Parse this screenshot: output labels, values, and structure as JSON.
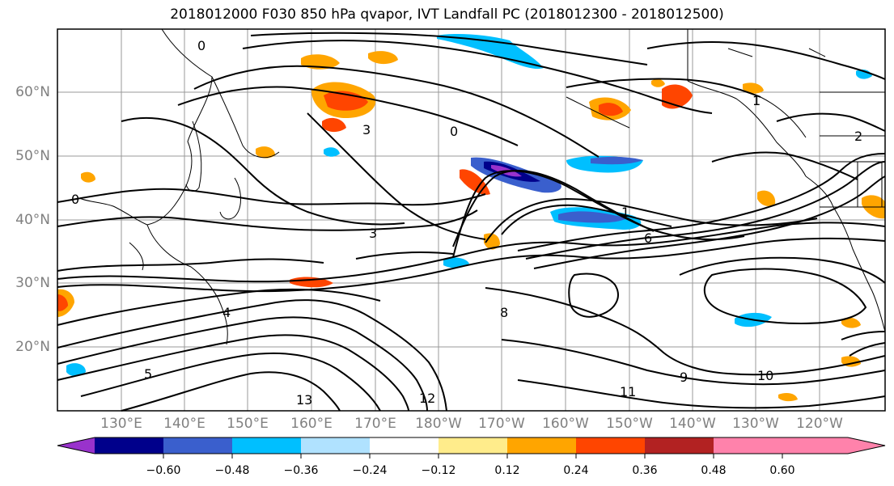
{
  "title": "2018012000 F030 850 hPa qvapor, IVT Landfall PC (2018012300 - 2018012500)",
  "lat_labels": [
    "60°N",
    "50°N",
    "40°N",
    "30°N",
    "20°N"
  ],
  "lon_labels": [
    "130°E",
    "140°E",
    "150°E",
    "160°E",
    "170°E",
    "180°W",
    "170°W",
    "160°W",
    "150°W",
    "140°W",
    "130°W",
    "120°W"
  ],
  "colorbar": {
    "labels": [
      "−0.60",
      "−0.48",
      "−0.36",
      "−0.24",
      "−0.12",
      "0.12",
      "0.24",
      "0.36",
      "0.48",
      "0.60"
    ],
    "colors": [
      "#9932cc",
      "#00008b",
      "#3a5fcd",
      "#00bfff",
      "#b0e2ff",
      "#ffffff",
      "#ffec8b",
      "#ffa500",
      "#ff4500",
      "#b22222",
      "#ff82ab"
    ]
  },
  "contour_labels": [
    "0",
    "0",
    "0",
    "1",
    "1",
    "2",
    "3",
    "3",
    "4",
    "5",
    "6",
    "8",
    "9",
    "10",
    "11",
    "12",
    "13"
  ]
}
